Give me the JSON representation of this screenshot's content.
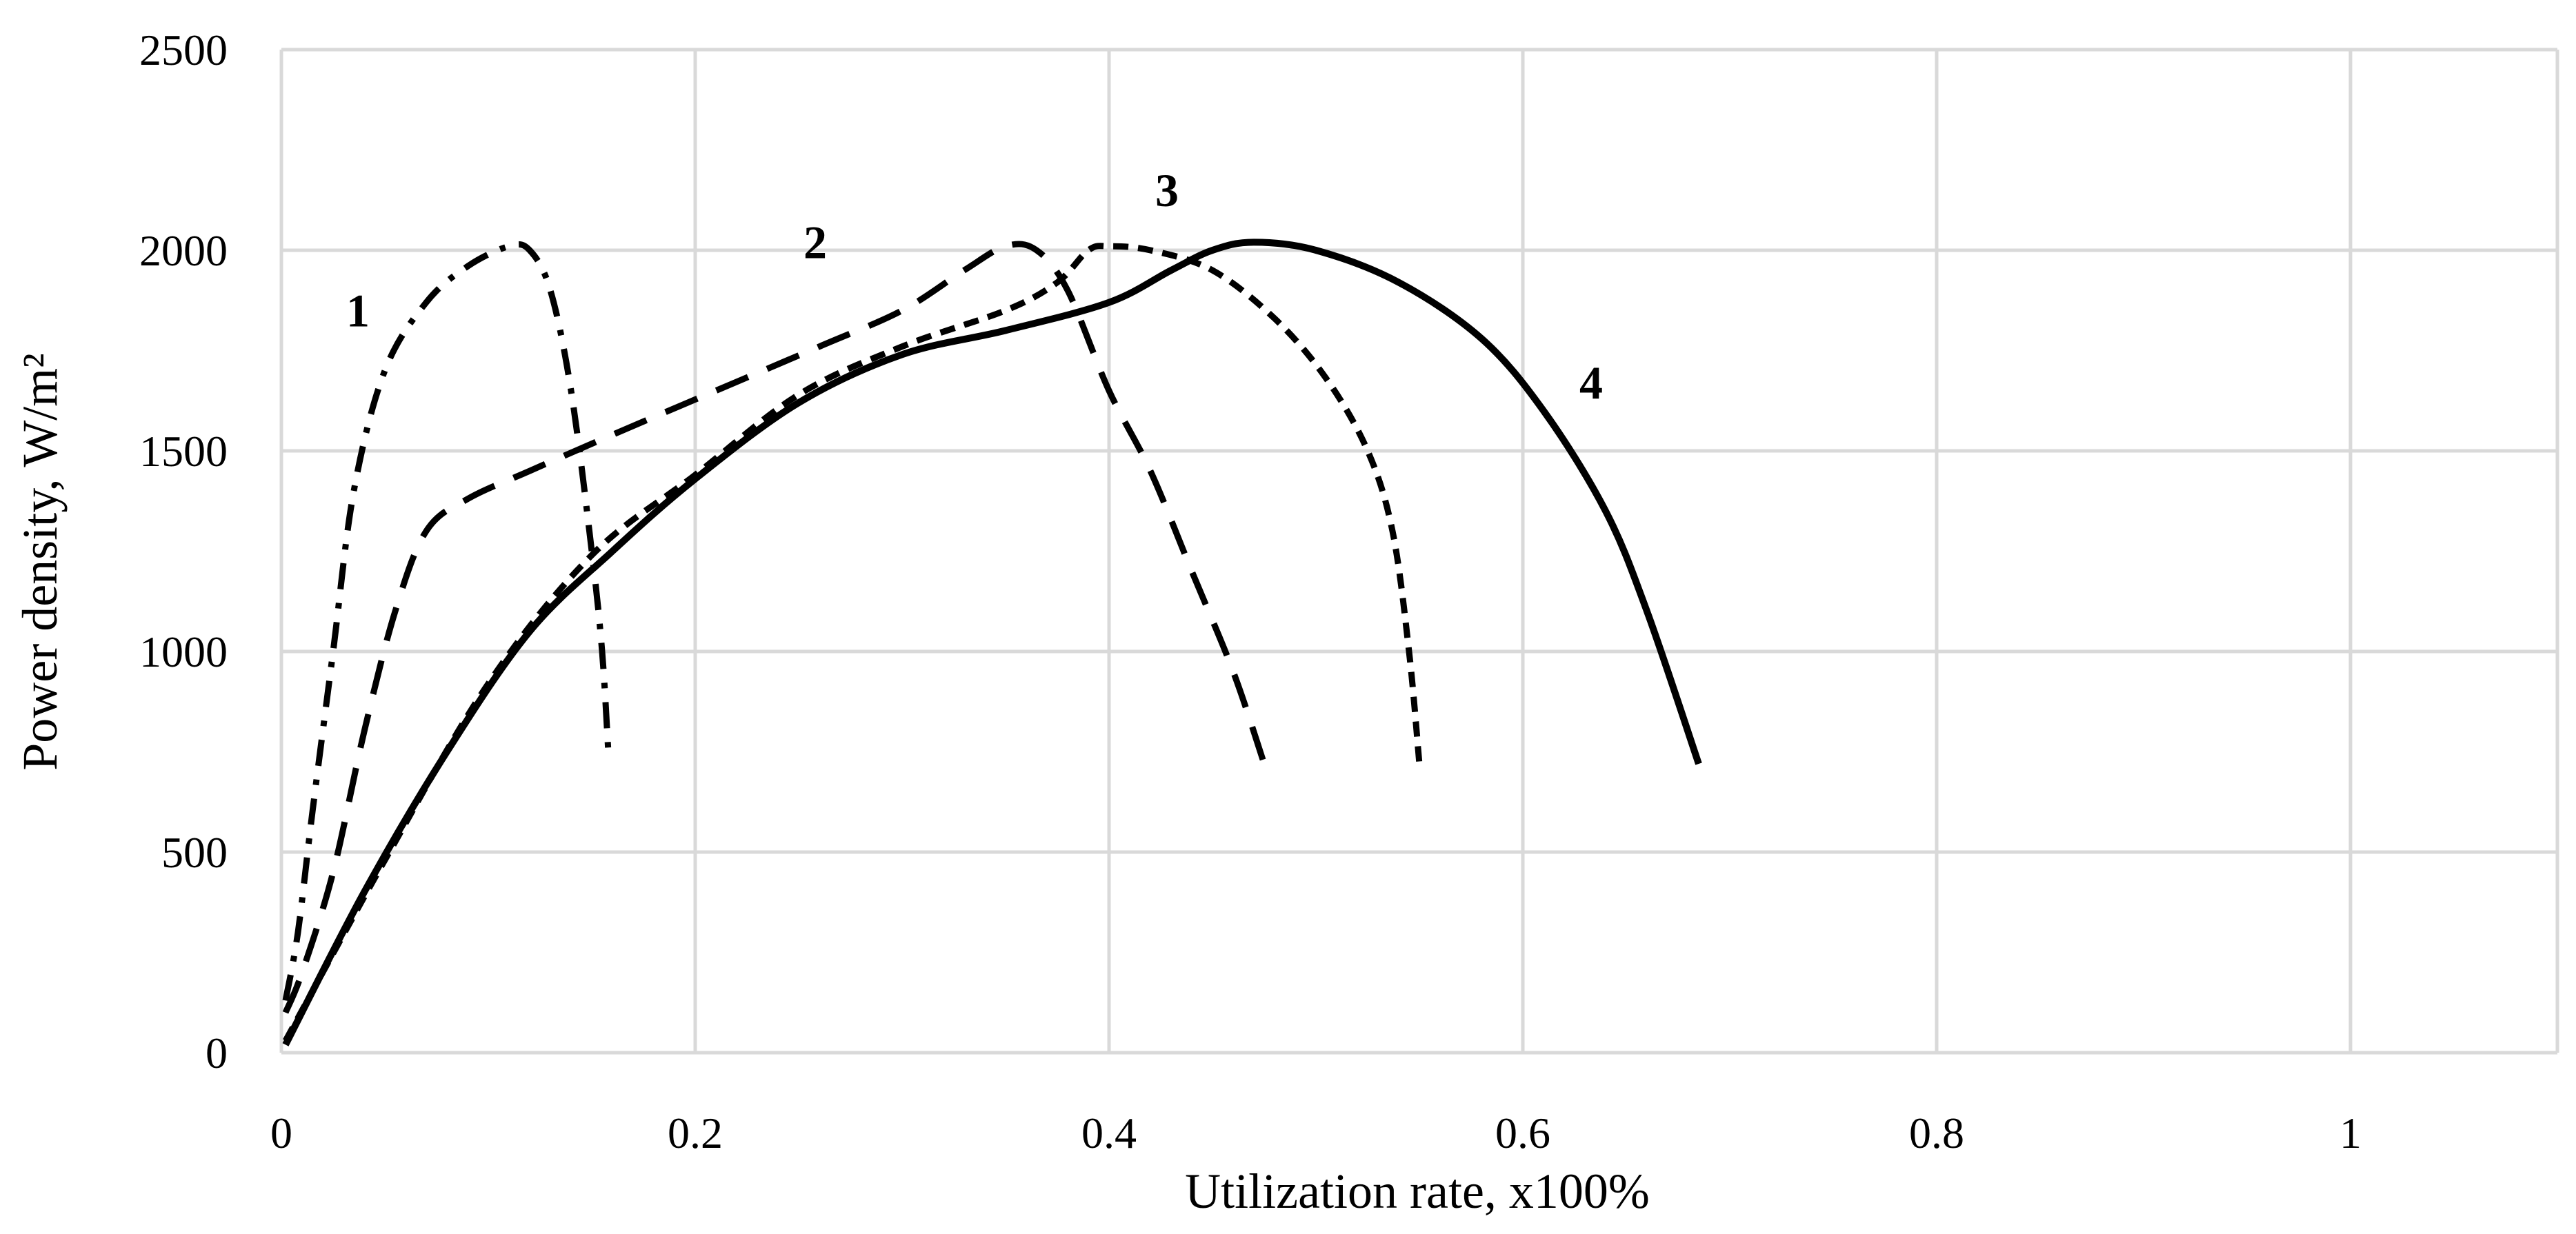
{
  "chart_data": {
    "type": "line",
    "title": "",
    "xlabel": "Utilization rate, x100%",
    "ylabel": "Power density, W/m²",
    "xlim": [
      0,
      1.1
    ],
    "ylim": [
      0,
      2500
    ],
    "xticks": [
      0,
      0.2,
      0.4,
      0.6,
      0.8,
      1
    ],
    "xtick_labels": [
      "0",
      "0.2",
      "0.4",
      "0.6",
      "0.8",
      "1"
    ],
    "yticks": [
      0,
      500,
      1000,
      1500,
      2000,
      2500
    ],
    "ytick_labels": [
      "0",
      "500",
      "1000",
      "1500",
      "2000",
      "2500"
    ],
    "grid": true,
    "legend": "none (curves labelled inline)",
    "series": [
      {
        "name": "1",
        "style": "dash-dot",
        "label_at": [
          0.037,
          1810
        ],
        "points": [
          [
            0.002,
            130
          ],
          [
            0.008,
            300
          ],
          [
            0.015,
            600
          ],
          [
            0.025,
            1000
          ],
          [
            0.035,
            1400
          ],
          [
            0.05,
            1700
          ],
          [
            0.07,
            1870
          ],
          [
            0.09,
            1960
          ],
          [
            0.11,
            2010
          ],
          [
            0.12,
            2000
          ],
          [
            0.13,
            1900
          ],
          [
            0.14,
            1650
          ],
          [
            0.15,
            1250
          ],
          [
            0.155,
            1000
          ],
          [
            0.158,
            750
          ]
        ]
      },
      {
        "name": "2",
        "style": "long-dash",
        "label_at": [
          0.258,
          1980
        ],
        "points": [
          [
            0.002,
            100
          ],
          [
            0.01,
            200
          ],
          [
            0.025,
            450
          ],
          [
            0.04,
            800
          ],
          [
            0.055,
            1100
          ],
          [
            0.07,
            1300
          ],
          [
            0.09,
            1380
          ],
          [
            0.12,
            1450
          ],
          [
            0.16,
            1540
          ],
          [
            0.21,
            1650
          ],
          [
            0.26,
            1760
          ],
          [
            0.3,
            1850
          ],
          [
            0.33,
            1950
          ],
          [
            0.35,
            2010
          ],
          [
            0.365,
            2000
          ],
          [
            0.38,
            1900
          ],
          [
            0.4,
            1650
          ],
          [
            0.42,
            1450
          ],
          [
            0.44,
            1200
          ],
          [
            0.46,
            950
          ],
          [
            0.475,
            720
          ]
        ]
      },
      {
        "name": "3",
        "style": "short-dash",
        "label_at": [
          0.428,
          2110
        ],
        "points": [
          [
            0.002,
            30
          ],
          [
            0.05,
            480
          ],
          [
            0.1,
            920
          ],
          [
            0.15,
            1240
          ],
          [
            0.2,
            1440
          ],
          [
            0.25,
            1640
          ],
          [
            0.3,
            1760
          ],
          [
            0.35,
            1850
          ],
          [
            0.375,
            1920
          ],
          [
            0.39,
            2000
          ],
          [
            0.4,
            2010
          ],
          [
            0.42,
            2000
          ],
          [
            0.45,
            1950
          ],
          [
            0.48,
            1830
          ],
          [
            0.505,
            1680
          ],
          [
            0.525,
            1500
          ],
          [
            0.537,
            1300
          ],
          [
            0.545,
            1000
          ],
          [
            0.55,
            720
          ]
        ]
      },
      {
        "name": "4",
        "style": "solid",
        "label_at": [
          0.633,
          1630
        ],
        "points": [
          [
            0.002,
            20
          ],
          [
            0.04,
            400
          ],
          [
            0.08,
            750
          ],
          [
            0.12,
            1050
          ],
          [
            0.16,
            1250
          ],
          [
            0.2,
            1430
          ],
          [
            0.25,
            1620
          ],
          [
            0.3,
            1740
          ],
          [
            0.35,
            1800
          ],
          [
            0.4,
            1870
          ],
          [
            0.43,
            1950
          ],
          [
            0.45,
            2000
          ],
          [
            0.47,
            2020
          ],
          [
            0.5,
            2000
          ],
          [
            0.54,
            1920
          ],
          [
            0.58,
            1780
          ],
          [
            0.61,
            1600
          ],
          [
            0.64,
            1350
          ],
          [
            0.66,
            1100
          ],
          [
            0.685,
            720
          ]
        ]
      }
    ]
  }
}
